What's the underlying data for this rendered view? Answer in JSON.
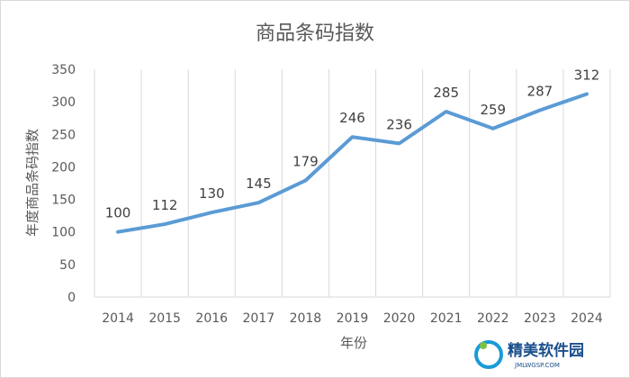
{
  "chart_data": {
    "type": "line",
    "title": "商品条码指数",
    "xlabel": "年份",
    "ylabel": "年度商品条码指数",
    "categories": [
      "2014",
      "2015",
      "2016",
      "2017",
      "2018",
      "2019",
      "2020",
      "2021",
      "2022",
      "2023",
      "2024"
    ],
    "values": [
      100,
      112,
      130,
      145,
      179,
      246,
      236,
      285,
      259,
      287,
      312
    ],
    "ylim": [
      0,
      350
    ],
    "yticks": [
      "0",
      "50",
      "100",
      "150",
      "200",
      "250",
      "300",
      "350"
    ],
    "grid": "vertical",
    "line_color": "#5b9bd5",
    "data_labels": true
  },
  "watermark": {
    "text": "精美软件园",
    "sub": "JMLWGSP.COM",
    "color": "#1a4f8b"
  }
}
